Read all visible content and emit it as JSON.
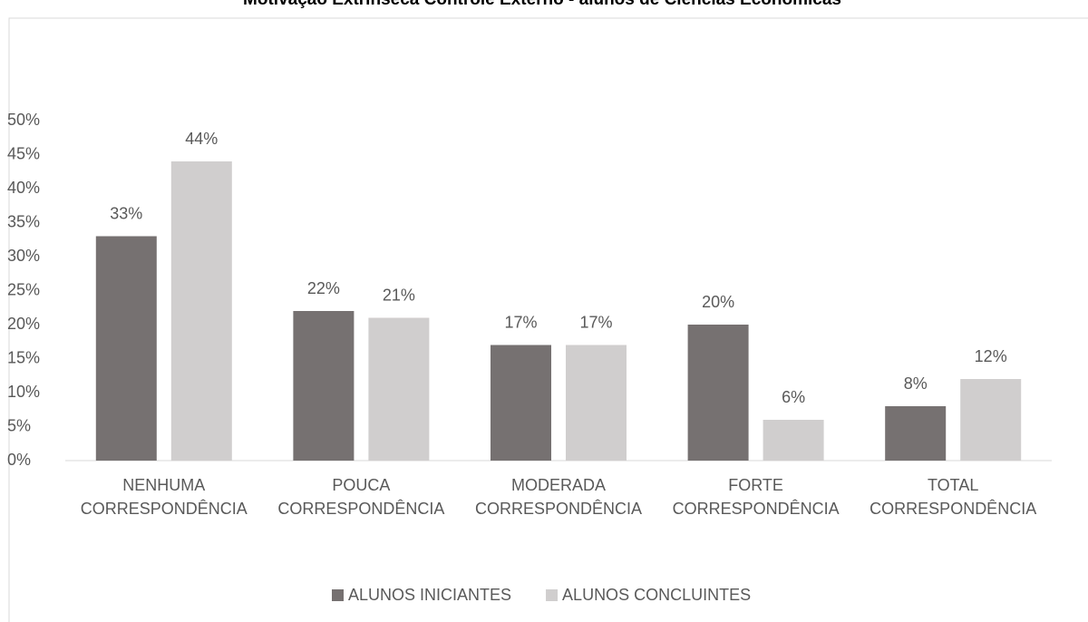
{
  "chart_data": {
    "type": "bar",
    "title": "Motivação Extrínseca Controle Externo - alunos de Ciências Econômicas",
    "categories": [
      "NENHUMA CORRESPONDÊNCIA",
      "POUCA CORRESPONDÊNCIA",
      "MODERADA CORRESPONDÊNCIA",
      "FORTE CORRESPONDÊNCIA",
      "TOTAL CORRESPONDÊNCIA"
    ],
    "series": [
      {
        "name": "ALUNOS INICIANTES",
        "color": "#767171",
        "values": [
          33,
          22,
          17,
          20,
          8
        ],
        "value_labels": [
          "33%",
          "22%",
          "17%",
          "20%",
          "8%"
        ]
      },
      {
        "name": "ALUNOS CONCLUINTES",
        "color": "#d0cece",
        "values": [
          44,
          21,
          17,
          6,
          12
        ],
        "value_labels": [
          "44%",
          "21%",
          "17%",
          "6%",
          "12%"
        ]
      }
    ],
    "ylim": [
      0,
      50
    ],
    "yticks": [
      {
        "value": 0,
        "label": "0%"
      },
      {
        "value": 5,
        "label": "5%"
      },
      {
        "value": 10,
        "label": "10%"
      },
      {
        "value": 15,
        "label": "15%"
      },
      {
        "value": 20,
        "label": "20%"
      },
      {
        "value": 25,
        "label": "25%"
      },
      {
        "value": 30,
        "label": "30%"
      },
      {
        "value": 35,
        "label": "35%"
      },
      {
        "value": 40,
        "label": "40%"
      },
      {
        "value": 45,
        "label": "45%"
      },
      {
        "value": 50,
        "label": "50%"
      }
    ],
    "grid": false,
    "legend": "bottom"
  }
}
